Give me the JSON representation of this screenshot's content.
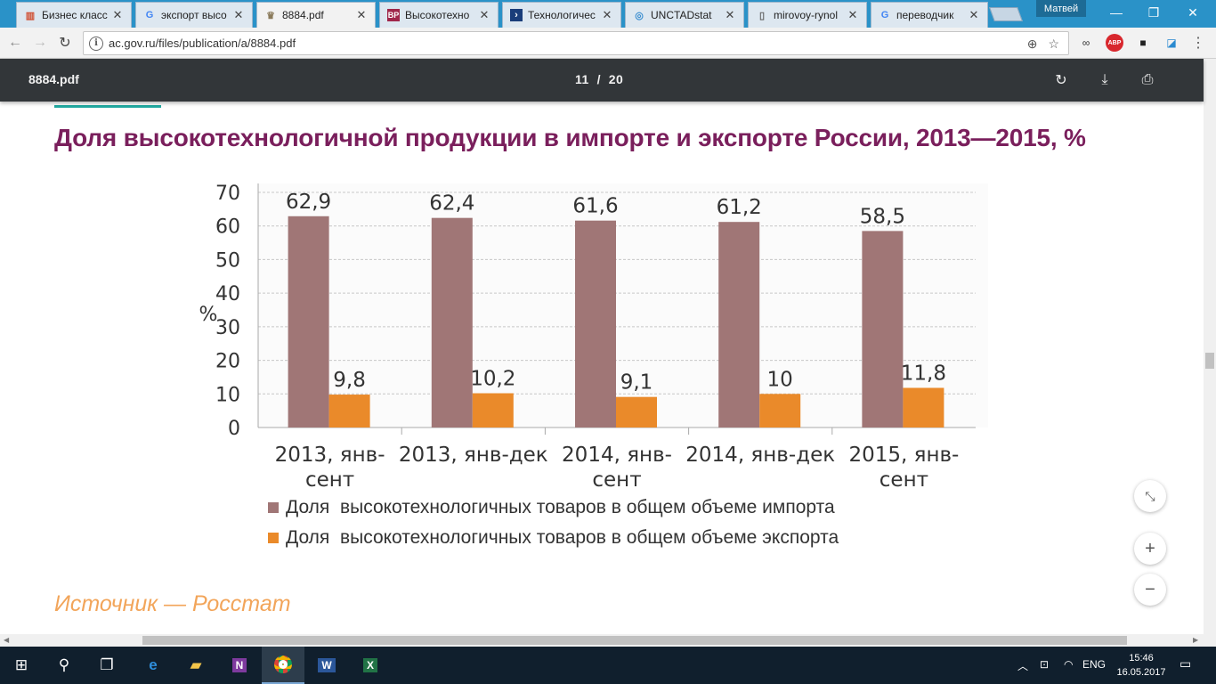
{
  "browser": {
    "tabs": [
      {
        "label": "Бизнес класс",
        "icon": "chart-favicon-icon"
      },
      {
        "label": "экспорт высо",
        "icon": "google-favicon-icon"
      },
      {
        "label": "8884.pdf",
        "icon": "emblem-favicon-icon",
        "active": true
      },
      {
        "label": "Высокотехно",
        "icon": "bp-favicon-icon"
      },
      {
        "label": "Технологичес",
        "icon": "arrow-favicon-icon"
      },
      {
        "label": "UNCTADstat",
        "icon": "un-favicon-icon"
      },
      {
        "label": "mirovoy-rynol",
        "icon": "page-favicon-icon"
      },
      {
        "label": "переводчик",
        "icon": "google-favicon-icon"
      }
    ],
    "user_name": "Матвей",
    "url": "ac.gov.ru/files/publication/a/8884.pdf",
    "extensions": {
      "abp_label": "ABP"
    }
  },
  "pdf_viewer": {
    "file_name": "8884.pdf",
    "current_page": "11",
    "page_separator": "/",
    "total_pages": "20"
  },
  "document": {
    "title": "Доля высокотехнологичной продукции в импорте и экспорте России, 2013—2015, %",
    "source": "Источник — Росстат"
  },
  "chart_data": {
    "type": "bar",
    "title": "",
    "ylabel": "%",
    "ylim": [
      0,
      70
    ],
    "yticks": [
      0,
      10,
      20,
      30,
      40,
      50,
      60,
      70
    ],
    "grid": true,
    "categories": [
      [
        "2013, янв-",
        "сент"
      ],
      [
        "2013, янв-дек"
      ],
      [
        "2014, янв-",
        "сент"
      ],
      [
        "2014, янв-дек"
      ],
      [
        "2015, янв-",
        "сент"
      ]
    ],
    "series": [
      {
        "name": "Доля  высокотехнологичных товаров в общем объеме импорта",
        "color": "#a07676",
        "values": [
          62.9,
          62.4,
          61.6,
          61.2,
          58.5
        ],
        "labels": [
          "62,9",
          "62,4",
          "61,6",
          "61,2",
          "58,5"
        ]
      },
      {
        "name": "Доля  высокотехнологичных товаров в общем объеме экспорта",
        "color": "#ea8a2a",
        "values": [
          9.8,
          10.2,
          9.1,
          10,
          11.8
        ],
        "labels": [
          "9,8",
          "10,2",
          "9,1",
          "10",
          "11,8"
        ]
      }
    ],
    "legend_position": "bottom"
  },
  "taskbar": {
    "language": "ENG",
    "time": "15:46",
    "date": "16.05.2017",
    "apps": [
      "windows-start-icon",
      "search-icon",
      "task-view-icon",
      "edge-icon",
      "file-explorer-icon",
      "onenote-icon",
      "chrome-icon",
      "word-icon",
      "excel-icon"
    ]
  }
}
